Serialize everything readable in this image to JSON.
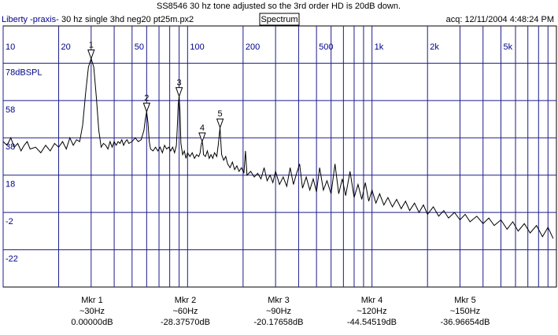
{
  "chart_data": {
    "type": "line",
    "title": "SS8546 30 hz tone adjusted so the 3rd order HD is 20dB down.",
    "source": "Liberty -praxis-",
    "file": "30 hz single 3hd neg20 pt25m.px2",
    "view_button": "Spectrum",
    "acquired": "acq: 12/11/2004 4:48:24 PM",
    "xscale": "log",
    "grid": true,
    "color": "#000000",
    "grid_color": "#1c1c8c",
    "xlim": [
      10,
      10000
    ],
    "ylim": [
      -42,
      98
    ],
    "xticks": [
      10,
      20,
      50,
      100,
      200,
      500,
      {
        "value": 1000,
        "label": "1k"
      },
      {
        "value": 2000,
        "label": "2k"
      },
      {
        "value": 5000,
        "label": "5k"
      }
    ],
    "xminor_ticks": [
      30,
      40,
      60,
      70,
      80,
      90,
      300,
      400,
      600,
      700,
      800,
      900,
      3000,
      4000,
      6000,
      7000,
      8000,
      9000
    ],
    "yticks": [
      {
        "value": 78,
        "label": "78dBSPL"
      },
      58,
      38,
      18,
      -2,
      -22
    ],
    "x": [
      10,
      10.5,
      11,
      11.5,
      12,
      12.5,
      13,
      13.5,
      14,
      15,
      16,
      17,
      18,
      19,
      20,
      21,
      22,
      23,
      24,
      25,
      26,
      27,
      28,
      29,
      30,
      31,
      32,
      33,
      34,
      35,
      36,
      37,
      38,
      39,
      40,
      41,
      42,
      43,
      44,
      45,
      46,
      47,
      48,
      50,
      52,
      54,
      56,
      58,
      59,
      60,
      61,
      62,
      63,
      65,
      67,
      69,
      71,
      73,
      75,
      77,
      79,
      81,
      83,
      85,
      87,
      88,
      89,
      90,
      91,
      92,
      94,
      96,
      98,
      100,
      103,
      106,
      109,
      112,
      115,
      117,
      118,
      119,
      120,
      121,
      122,
      125,
      128,
      131,
      134,
      137,
      140,
      144,
      147,
      149,
      150,
      151,
      153,
      157,
      161,
      165,
      170,
      175,
      180,
      185,
      190,
      196,
      202,
      206,
      210,
      220,
      230,
      240,
      250,
      260,
      270,
      280,
      290,
      300,
      315,
      330,
      345,
      360,
      375,
      390,
      405,
      420,
      440,
      460,
      480,
      500,
      520,
      545,
      570,
      600,
      630,
      660,
      690,
      720,
      760,
      800,
      840,
      880,
      920,
      960,
      1000,
      1050,
      1100,
      1160,
      1220,
      1290,
      1360,
      1440,
      1520,
      1600,
      1700,
      1800,
      1900,
      2000,
      2150,
      2300,
      2450,
      2600,
      2800,
      3000,
      3200,
      3400,
      3700,
      4000,
      4300,
      4600,
      5000,
      5400,
      5800,
      6200,
      6700,
      7200,
      7800,
      8400,
      9000,
      9600
    ],
    "values": [
      36,
      34,
      38,
      33,
      35,
      31,
      34,
      36,
      32,
      33,
      30,
      34,
      31,
      35,
      33,
      36,
      32,
      38,
      34,
      37,
      36,
      45,
      62,
      76,
      80.5,
      76,
      60,
      42,
      33,
      35,
      34,
      32,
      36,
      33,
      36,
      34,
      36,
      35,
      37,
      34,
      36,
      37,
      35,
      36,
      38,
      36,
      37,
      42,
      48,
      52,
      46,
      36,
      32,
      31,
      33,
      31,
      33,
      30,
      34,
      32,
      33,
      31,
      33,
      30,
      34,
      44,
      56,
      60.3,
      52,
      35,
      29,
      31,
      27,
      30,
      28,
      30,
      27,
      29,
      28,
      30,
      33,
      35,
      36,
      34,
      29,
      28,
      31,
      27,
      29,
      27,
      30,
      28,
      35,
      41,
      43.5,
      38,
      29,
      26,
      28,
      24,
      22,
      25,
      21,
      23,
      20,
      22,
      19,
      31,
      18,
      20,
      17,
      19,
      16,
      22,
      15,
      18,
      14,
      20,
      13,
      17,
      12,
      22,
      13,
      19,
      24,
      11,
      17,
      10,
      16,
      9,
      22,
      10,
      15,
      8,
      24,
      8,
      16,
      7,
      20,
      6,
      13,
      5,
      14,
      4,
      10,
      3,
      8,
      2,
      6,
      1,
      5,
      0,
      4,
      -1,
      3,
      -2,
      2,
      -3,
      1,
      -4,
      -1,
      -5,
      -2,
      -6,
      -3,
      -7,
      -4,
      -8,
      -5,
      -9,
      -6,
      -11,
      -7,
      -12,
      -8,
      -13,
      -9,
      -15,
      -10,
      -16
    ],
    "markers": [
      {
        "label": "1",
        "name": "Mkr 1",
        "freq": 30,
        "freq_label": "~30Hz",
        "level": 80.5,
        "readout": "0.00000dB"
      },
      {
        "label": "2",
        "name": "Mkr 2",
        "freq": 60,
        "freq_label": "~60Hz",
        "level": 52,
        "readout": "-28.37570dB"
      },
      {
        "label": "3",
        "name": "Mkr 3",
        "freq": 90,
        "freq_label": "~90Hz",
        "level": 60.3,
        "readout": "-20.17658dB"
      },
      {
        "label": "4",
        "name": "Mkr 4",
        "freq": 120,
        "freq_label": "~120Hz",
        "level": 36,
        "readout": "-44.54519dB"
      },
      {
        "label": "5",
        "name": "Mkr 5",
        "freq": 150,
        "freq_label": "~150Hz",
        "level": 43.5,
        "readout": "-36.96654dB"
      }
    ]
  }
}
